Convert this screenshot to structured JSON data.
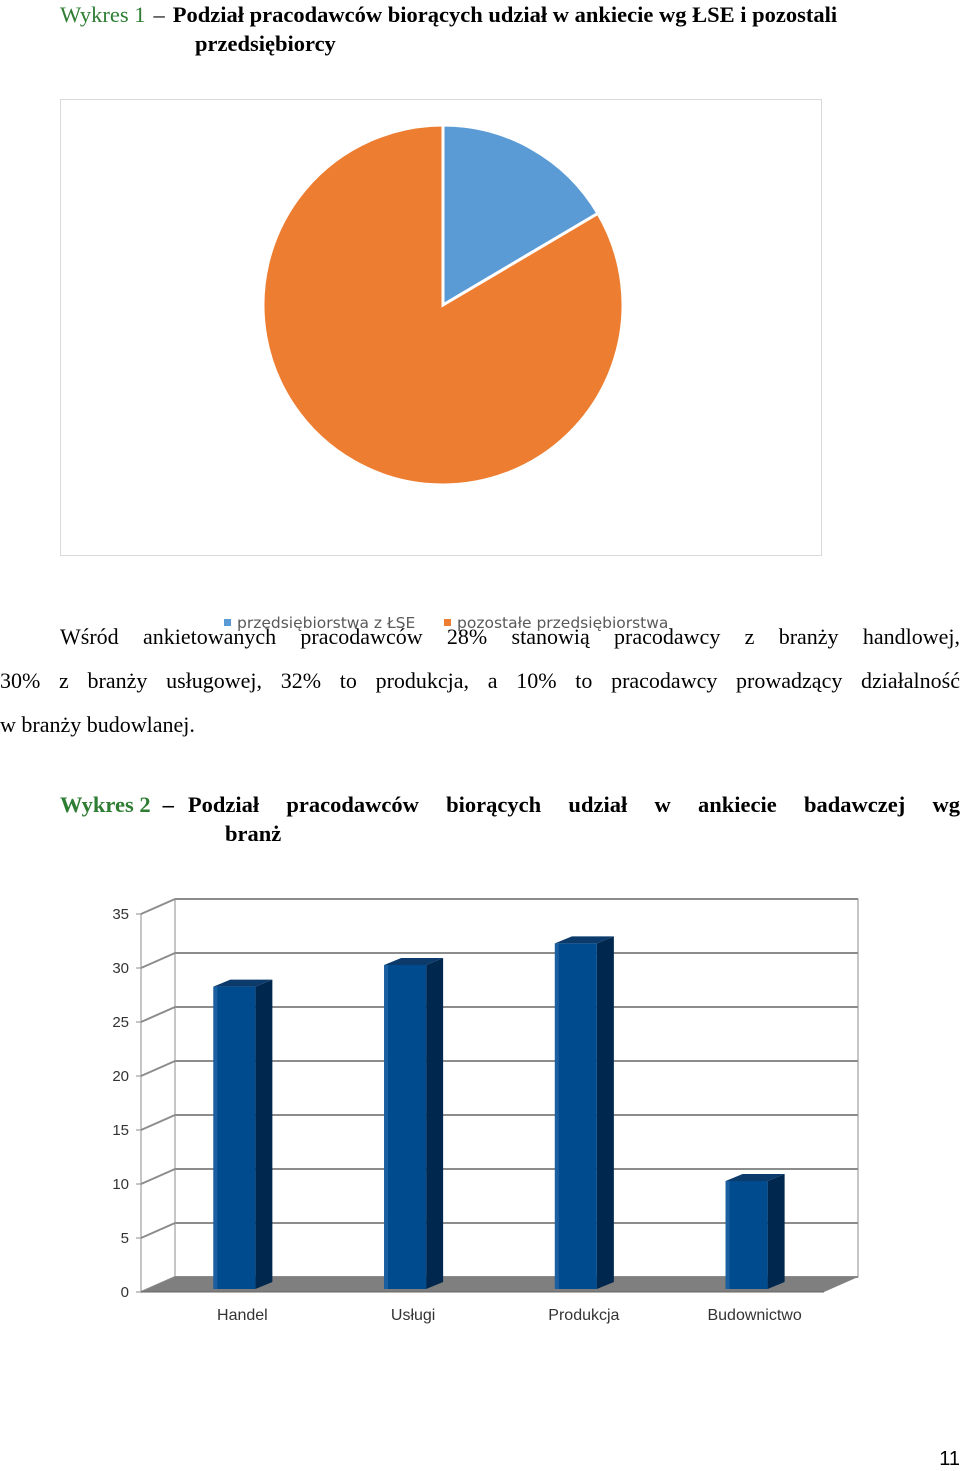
{
  "caption1": {
    "label": "Wykres 1",
    "dash": "–",
    "title_line1": "Podział pracodawców biorących udział w ankiecie wg ŁSE i pozostali",
    "title_line2": "przedsiębiorcy"
  },
  "paragraph": {
    "line1": "Wśród ankietowanych pracodawców 28% stanowią pracodawcy z branży handlowej,",
    "line2": "30% z branży usługowej, 32% to produkcja, a 10% to pracodawcy prowadzący działalność",
    "line3": "w branży budowlanej."
  },
  "caption2": {
    "label": "Wykres 2",
    "dash": "–",
    "title_line1": "Podział pracodawców biorących udział w ankiecie badawczej wg",
    "title_line2": "branż"
  },
  "page_number": "11",
  "chart_data": [
    {
      "type": "pie",
      "slices": [
        {
          "label": "przedsiębiorstwa z ŁSE",
          "value": 16.5,
          "color": "#5b9bd5"
        },
        {
          "label": "pozostałe przedsiębiorstwa",
          "value": 83.5,
          "color": "#ed7d31"
        }
      ],
      "legend": [
        "przedsiębiorstwa z ŁSE",
        "pozostałe przedsiębiorstwa"
      ],
      "legend_position": "bottom"
    },
    {
      "type": "bar",
      "categories": [
        "Handel",
        "Usługi",
        "Produkcja",
        "Budownictwo"
      ],
      "values": [
        28,
        30,
        32,
        10
      ],
      "ylim": [
        0,
        35
      ],
      "yticks": [
        "0",
        "5",
        "10",
        "15",
        "20",
        "25",
        "30",
        "35"
      ],
      "color": "#004a8e",
      "grid": true,
      "style": "3d"
    }
  ]
}
